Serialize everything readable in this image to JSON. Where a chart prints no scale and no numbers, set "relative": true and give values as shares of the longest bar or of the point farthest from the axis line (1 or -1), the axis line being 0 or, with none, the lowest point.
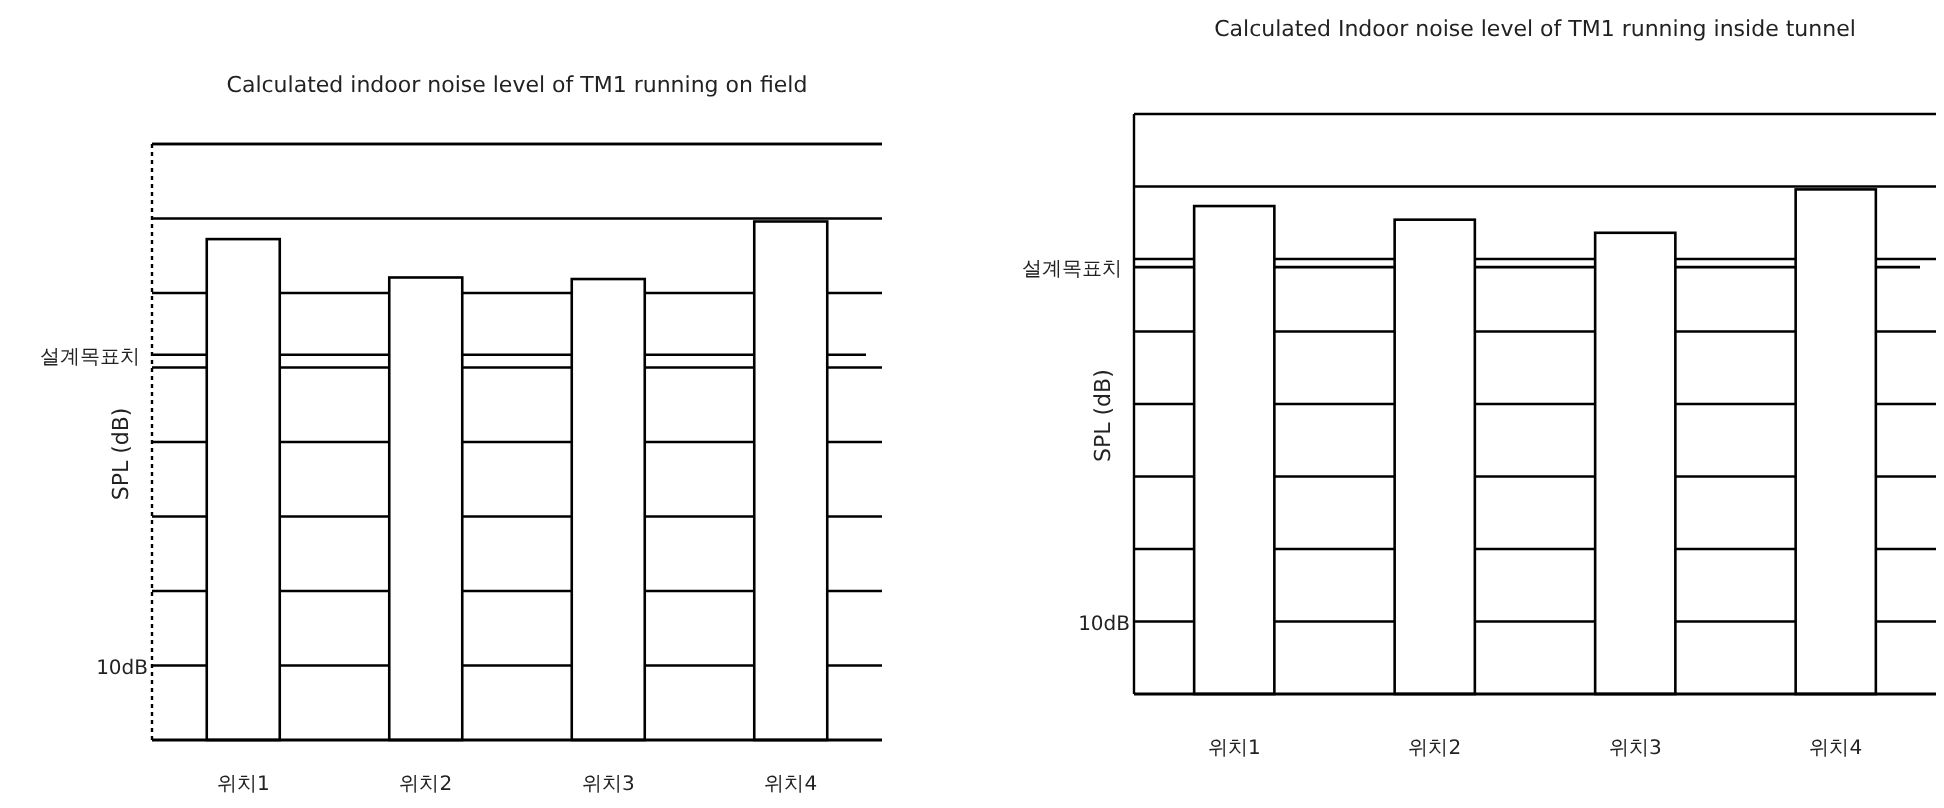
{
  "chart_data": [
    {
      "type": "bar",
      "title": "Calculated indoor noise level of TM1 running on field",
      "ylabel": "SPL (dB)",
      "categories": [
        "위치1",
        "위치2",
        "위치3",
        "위치4"
      ],
      "values": [
        0.966,
        0.892,
        0.889,
        1
      ],
      "color": "#ffffff",
      "relative": true,
      "grid": "y",
      "ref_lines": [
        {
          "axis": "y",
          "value": 0.743,
          "label": "설계목표치"
        }
      ],
      "annotations": [
        "10dB"
      ]
    },
    {
      "type": "bar",
      "title": "Calculated Indoor noise level of TM1 running inside tunnel",
      "ylabel": "SPL (dB)",
      "categories": [
        "위치1",
        "위치2",
        "위치3",
        "위치4"
      ],
      "values": [
        0.967,
        0.94,
        0.914,
        1
      ],
      "color": "#ffffff",
      "relative": true,
      "grid": "y",
      "ref_lines": [
        {
          "axis": "y",
          "value": 0.846,
          "label": "설계목표치"
        }
      ],
      "annotations": [
        "10dB"
      ]
    }
  ]
}
